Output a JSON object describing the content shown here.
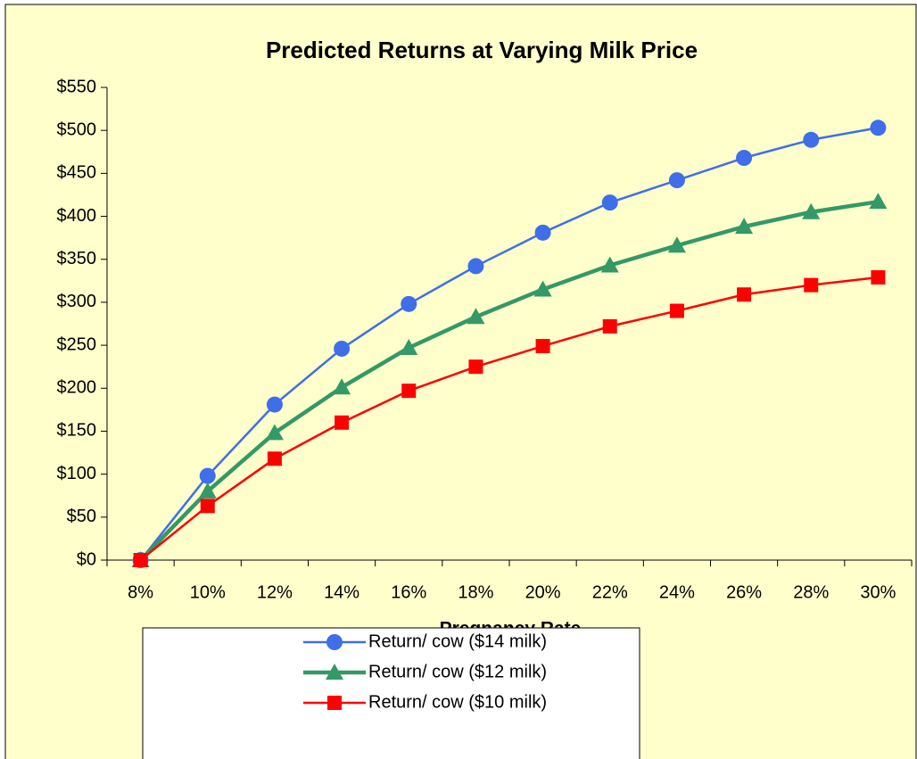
{
  "chart_data": {
    "type": "line",
    "title": "Predicted Returns at Varying Milk Price",
    "xlabel": "Pregnancy Rate",
    "categories": [
      "8%",
      "10%",
      "12%",
      "14%",
      "16%",
      "18%",
      "20%",
      "22%",
      "24%",
      "26%",
      "28%",
      "30%"
    ],
    "series": [
      {
        "name": "Return/ cow ($14 milk)",
        "color": "#3f6ee8",
        "marker": "circle",
        "values": [
          0,
          98,
          181,
          246,
          298,
          342,
          381,
          416,
          442,
          468,
          489,
          503
        ]
      },
      {
        "name": "Return/ cow ($12 milk)",
        "color": "#339966",
        "marker": "triangle",
        "values": [
          0,
          80,
          148,
          201,
          247,
          283,
          315,
          343,
          366,
          388,
          405,
          417
        ]
      },
      {
        "name": "Return/ cow ($10 milk)",
        "color": "#ff0000",
        "marker": "square",
        "values": [
          0,
          63,
          118,
          160,
          197,
          225,
          249,
          272,
          290,
          309,
          320,
          329
        ]
      }
    ],
    "ylim": [
      0,
      550
    ],
    "yticks": [
      {
        "value": 0,
        "label": "$0"
      },
      {
        "value": 50,
        "label": "$50"
      },
      {
        "value": 100,
        "label": "$100"
      },
      {
        "value": 150,
        "label": "$150"
      },
      {
        "value": 200,
        "label": "$200"
      },
      {
        "value": 250,
        "label": "$250"
      },
      {
        "value": 300,
        "label": "$300"
      },
      {
        "value": 350,
        "label": "$350"
      },
      {
        "value": 400,
        "label": "$400"
      },
      {
        "value": 450,
        "label": "$450"
      },
      {
        "value": 500,
        "label": "$500"
      },
      {
        "value": 550,
        "label": "$550"
      }
    ],
    "grid": false,
    "legend": "bottom",
    "background": "#ffffcc"
  }
}
